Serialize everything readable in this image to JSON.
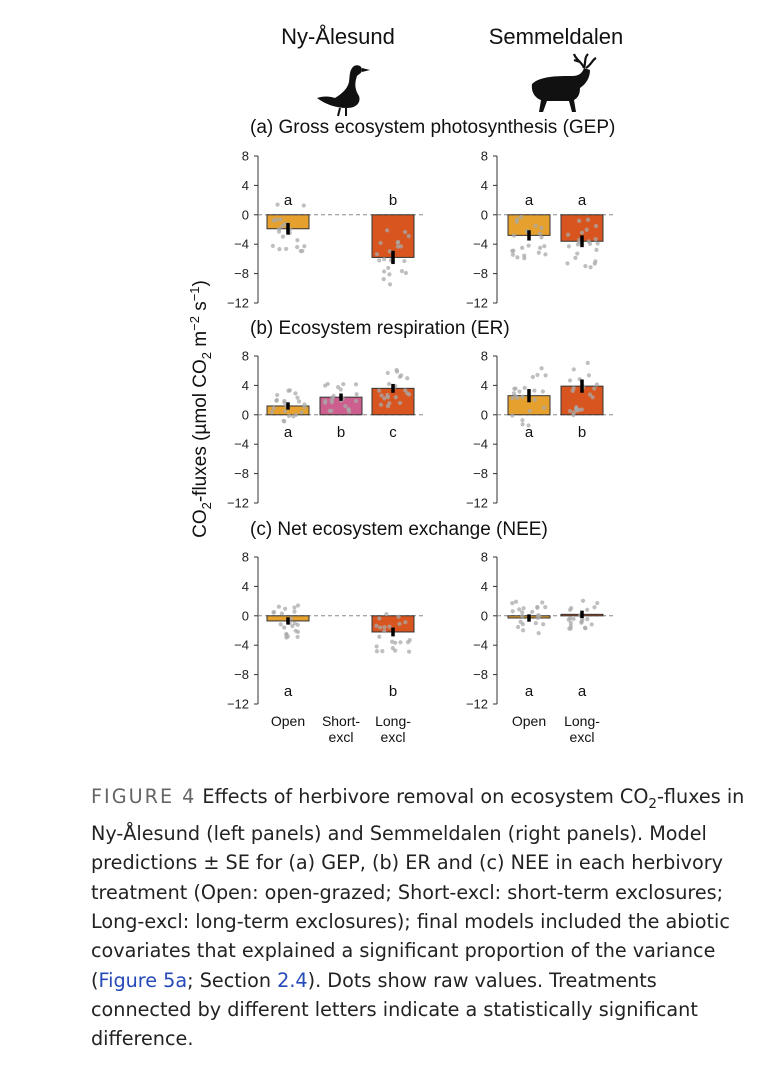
{
  "figure": {
    "sites": [
      "Ny-Ålesund",
      "Semmeldalen"
    ],
    "site_icons": [
      "goose-icon",
      "reindeer-icon"
    ],
    "ylabel_parts": [
      "CO",
      "2",
      "-fluxes (µmol CO",
      "2",
      " m",
      "−2",
      " s",
      "−1",
      ")"
    ],
    "treatment_labels": {
      "ny": [
        [
          "Open"
        ],
        [
          "Short-",
          "excl"
        ],
        [
          "Long-",
          "excl"
        ]
      ],
      "semmel": [
        [
          "Open"
        ],
        [
          "Long-",
          "excl"
        ]
      ]
    },
    "colors": {
      "open": "#e5a02e",
      "short": "#cc5f8e",
      "long": "#d8551f",
      "dots": "#a9a9a9",
      "axis": "#333333"
    }
  },
  "chart_data": [
    {
      "type": "bar",
      "panel": "(a) Gross ecosystem photosynthesis (GEP)",
      "title": "(a) Gross ecosystem photosynthesis (GEP)",
      "ylim": [
        -12,
        8
      ],
      "yticks": [
        8,
        4,
        0,
        -4,
        -8,
        -12
      ],
      "sites": [
        {
          "site": "Ny-Ålesund",
          "bars": [
            {
              "treatment": "Open",
              "value": -1.9,
              "se": 0.8,
              "letter": "a",
              "color": "open"
            },
            {
              "treatment": "Short-excl",
              "value": null,
              "se": null,
              "letter": "",
              "color": "short"
            },
            {
              "treatment": "Long-excl",
              "value": -5.8,
              "se": 0.9,
              "letter": "b",
              "color": "long"
            }
          ]
        },
        {
          "site": "Semmeldalen",
          "bars": [
            {
              "treatment": "Open",
              "value": -2.8,
              "se": 0.7,
              "letter": "a",
              "color": "open"
            },
            {
              "treatment": "Long-excl",
              "value": -3.6,
              "se": 0.8,
              "letter": "a",
              "color": "long"
            }
          ]
        }
      ],
      "letter_position": "above"
    },
    {
      "type": "bar",
      "panel": "(b) Ecosystem respiration (ER)",
      "title": "(b) Ecosystem respiration (ER)",
      "ylim": [
        -12,
        8
      ],
      "yticks": [
        8,
        4,
        0,
        -4,
        -8,
        -12
      ],
      "sites": [
        {
          "site": "Ny-Ålesund",
          "bars": [
            {
              "treatment": "Open",
              "value": 1.2,
              "se": 0.5,
              "letter": "a",
              "color": "open"
            },
            {
              "treatment": "Short-excl",
              "value": 2.4,
              "se": 0.5,
              "letter": "b",
              "color": "short"
            },
            {
              "treatment": "Long-excl",
              "value": 3.6,
              "se": 0.6,
              "letter": "c",
              "color": "long"
            }
          ]
        },
        {
          "site": "Semmeldalen",
          "bars": [
            {
              "treatment": "Open",
              "value": 2.6,
              "se": 0.9,
              "letter": "a",
              "color": "open"
            },
            {
              "treatment": "Long-excl",
              "value": 3.9,
              "se": 0.9,
              "letter": "b",
              "color": "long"
            }
          ]
        }
      ],
      "letter_position": "below"
    },
    {
      "type": "bar",
      "panel": "(c) Net ecosystem exchange (NEE)",
      "title": "(c) Net ecosystem exchange (NEE)",
      "ylim": [
        -12,
        8
      ],
      "yticks": [
        8,
        4,
        0,
        -4,
        -8,
        -12
      ],
      "sites": [
        {
          "site": "Ny-Ålesund",
          "bars": [
            {
              "treatment": "Open",
              "value": -0.7,
              "se": 0.5,
              "letter": "a",
              "color": "open"
            },
            {
              "treatment": "Short-excl",
              "value": null,
              "se": null,
              "letter": "",
              "color": "short"
            },
            {
              "treatment": "Long-excl",
              "value": -2.2,
              "se": 0.6,
              "letter": "b",
              "color": "long"
            }
          ]
        },
        {
          "site": "Semmeldalen",
          "bars": [
            {
              "treatment": "Open",
              "value": -0.3,
              "se": 0.5,
              "letter": "a",
              "color": "open"
            },
            {
              "treatment": "Long-excl",
              "value": 0.2,
              "se": 0.5,
              "letter": "a",
              "color": "long"
            }
          ]
        }
      ],
      "letter_position": "bottom"
    }
  ],
  "caption": {
    "label": "FIGURE 4",
    "p1": "Effects of herbivore removal on ecosystem CO",
    "p1_sub": "2",
    "p2": "-fluxes in Ny-Ålesund (left panels) and Semmeldalen (right panels). Model predictions ± SE for (a) GEP, (b) ER and (c) NEE in each herbivory treatment (Open: open-grazed; Short-excl: short-term exclosures; Long-excl: long-term exclosures); final models included the abiotic covariates that explained a significant proportion of the variance (",
    "link1": "Figure 5a",
    "p3": "; Section ",
    "link2": "2.4",
    "p4": "). Dots show raw values. Treatments connected by different letters indicate a statistically significant difference."
  }
}
